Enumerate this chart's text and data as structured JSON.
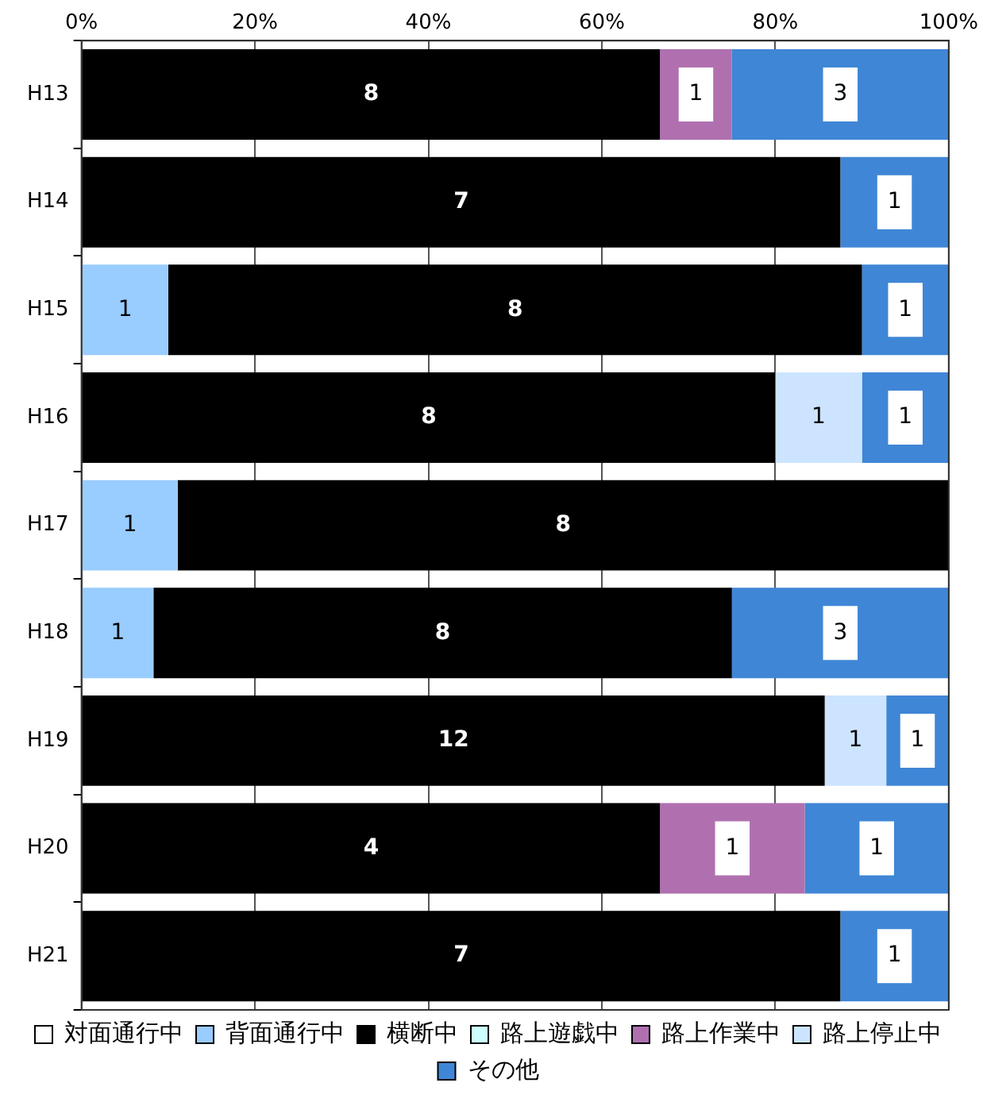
{
  "chart_data": {
    "type": "bar",
    "orientation": "horizontal",
    "stacked": true,
    "categories": [
      "H13",
      "H14",
      "H15",
      "H16",
      "H17",
      "H18",
      "H19",
      "H20",
      "H21"
    ],
    "xlim": [
      0,
      100
    ],
    "xticks": [
      {
        "value": 0,
        "label": "0%"
      },
      {
        "value": 20,
        "label": "20%"
      },
      {
        "value": 40,
        "label": "40%"
      },
      {
        "value": 60,
        "label": "60%"
      },
      {
        "value": 80,
        "label": "80%"
      },
      {
        "value": 100,
        "label": "100%"
      }
    ],
    "series": [
      {
        "name": "対面通行中",
        "color": "#ffffff",
        "values": [
          null,
          null,
          null,
          null,
          null,
          null,
          null,
          null,
          null
        ]
      },
      {
        "name": "背面通行中",
        "color": "#99ccff",
        "values": [
          null,
          null,
          10,
          null,
          11.1,
          8.3,
          null,
          null,
          null
        ]
      },
      {
        "name": "横断中",
        "color": "#000000",
        "values": [
          66.7,
          87.5,
          80,
          80,
          88.9,
          66.7,
          85.7,
          66.7,
          87.5
        ]
      },
      {
        "name": "路上遊戯中",
        "color": "#ccffff",
        "values": [
          null,
          null,
          null,
          null,
          null,
          null,
          null,
          null,
          null
        ]
      },
      {
        "name": "路上作業中",
        "color": "#b070b0",
        "values": [
          8.3,
          null,
          null,
          null,
          null,
          null,
          null,
          16.7,
          null
        ]
      },
      {
        "name": "路上停止中",
        "color": "#cce4ff",
        "values": [
          null,
          null,
          null,
          10,
          null,
          null,
          7.1,
          null,
          null
        ]
      },
      {
        "name": "その他",
        "color": "#3f86d6",
        "values": [
          25,
          12.5,
          10,
          10,
          null,
          25,
          7.2,
          16.6,
          12.5
        ]
      }
    ],
    "annotations": [
      "8",
      "1",
      "3",
      "7",
      "1",
      "1",
      "8",
      "1",
      "8",
      "1",
      "1",
      "1",
      "8",
      "1",
      "8",
      "3",
      "12",
      "1",
      "1",
      "4",
      "1",
      "1",
      "7",
      "1"
    ],
    "grid": "x",
    "legend": "bottom"
  }
}
